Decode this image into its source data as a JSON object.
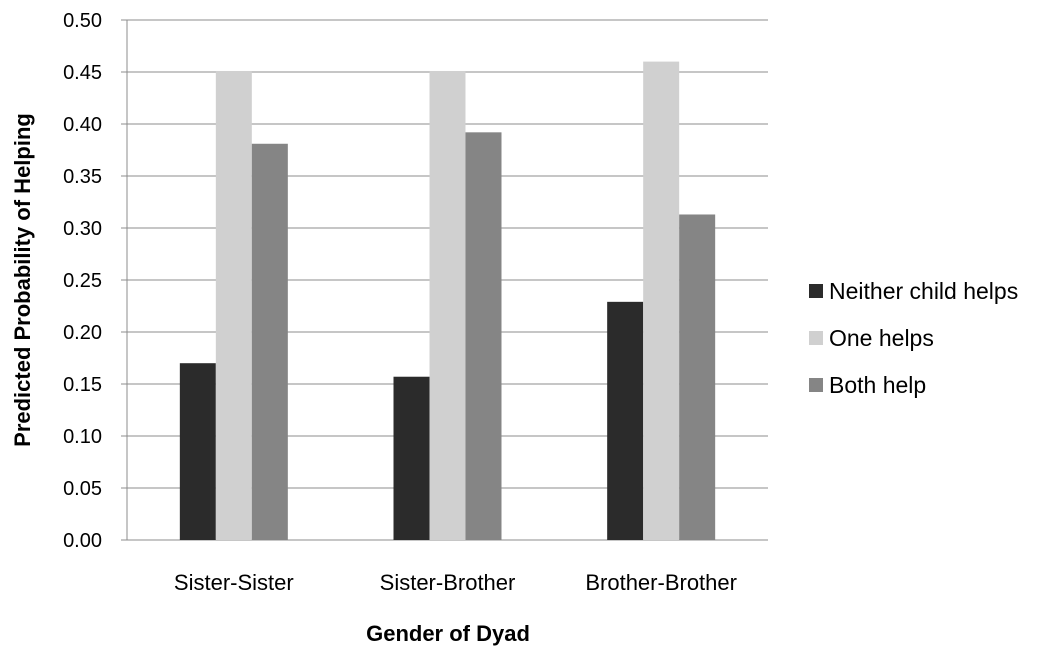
{
  "chart_data": {
    "type": "bar",
    "categories": [
      "Sister-Sister",
      "Sister-Brother",
      "Brother-Brother"
    ],
    "series": [
      {
        "name": "Neither child helps",
        "values": [
          0.17,
          0.157,
          0.229
        ],
        "color": "#2b2b2b"
      },
      {
        "name": "One helps",
        "values": [
          0.451,
          0.451,
          0.46
        ],
        "color": "#d0d0d0"
      },
      {
        "name": "Both help",
        "values": [
          0.381,
          0.392,
          0.313
        ],
        "color": "#858585"
      }
    ],
    "xlabel": "Gender of Dyad",
    "ylabel": "Predicted Probability of Helping",
    "ylim": [
      0,
      0.5
    ],
    "yticks": [
      "0.00",
      "0.05",
      "0.10",
      "0.15",
      "0.20",
      "0.25",
      "0.30",
      "0.35",
      "0.40",
      "0.45",
      "0.50"
    ],
    "grid": true,
    "legend_position": "right"
  }
}
